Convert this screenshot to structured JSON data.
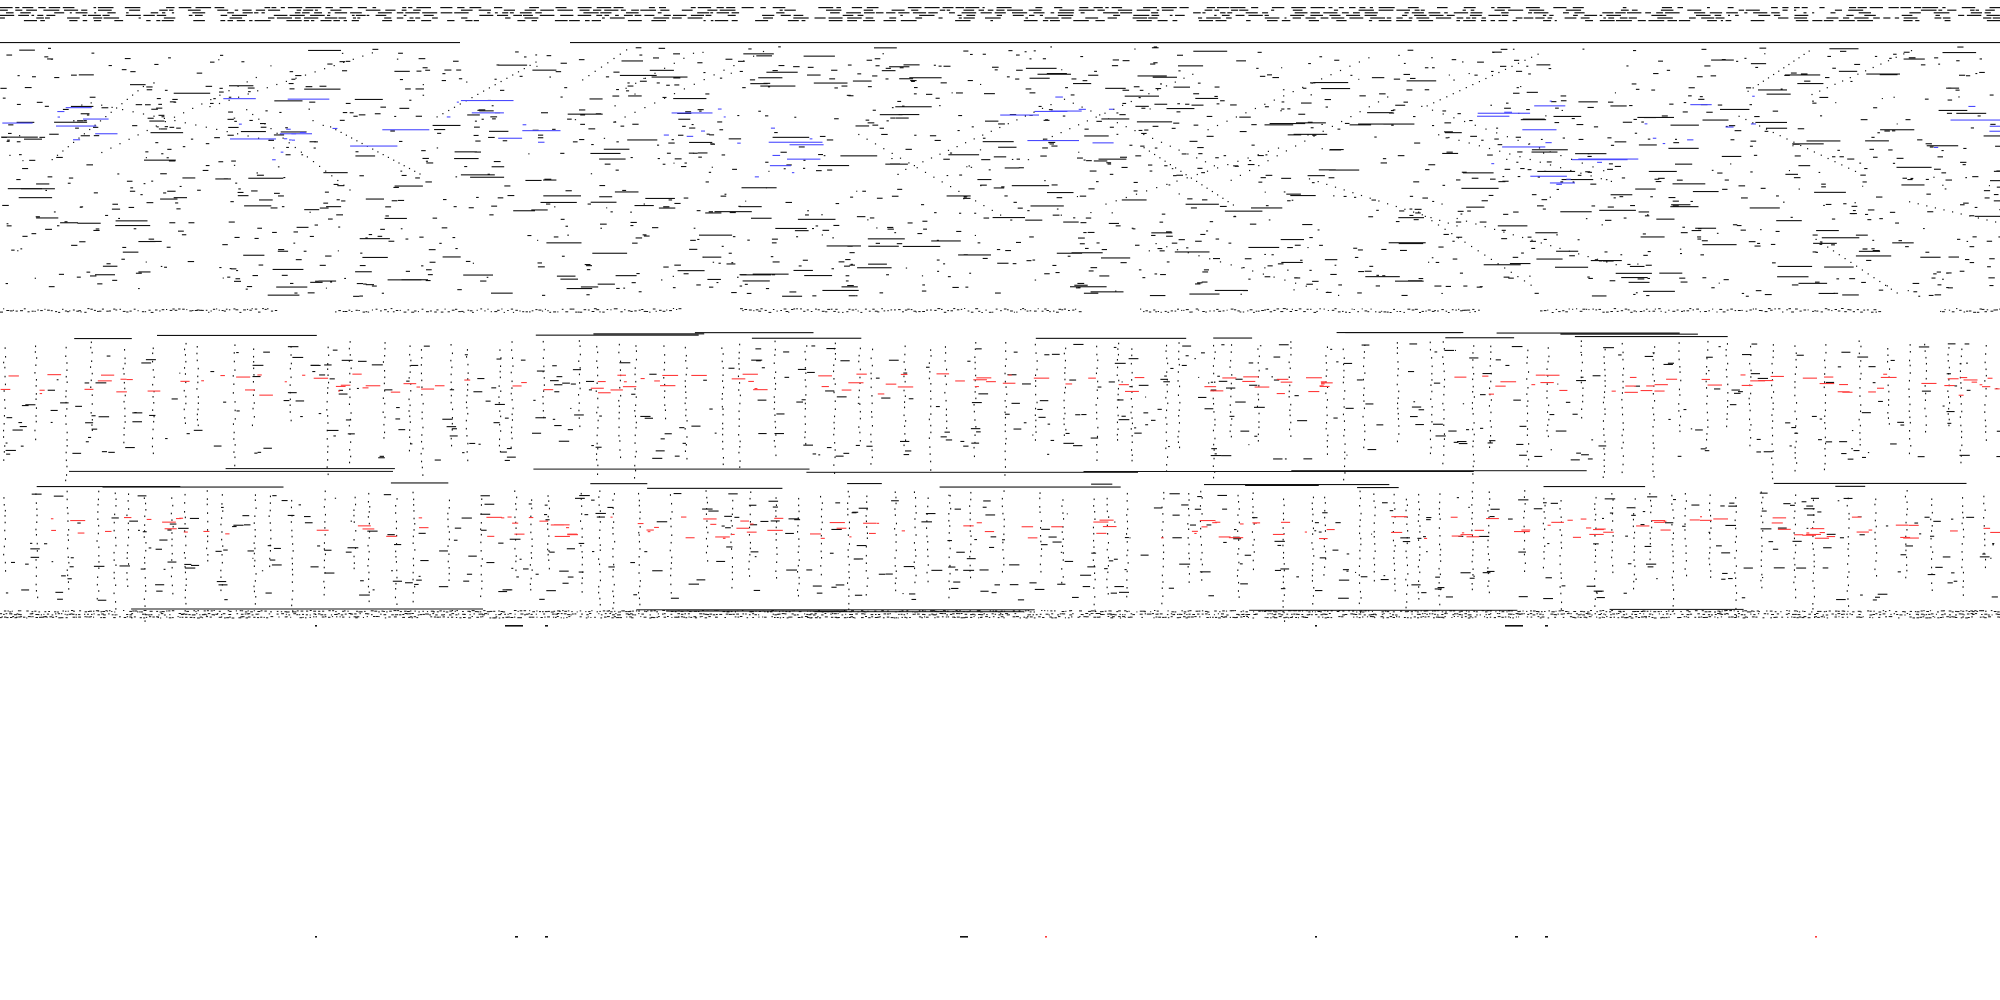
{
  "palette": {
    "background": "#ffffff",
    "ink": "#111111",
    "blue": "#4a4aff",
    "red": "#ff3b3b"
  },
  "bands": [
    {
      "kind": "header-dashes"
    },
    {
      "kind": "scatter-field",
      "accent": "blue"
    },
    {
      "kind": "dotted-separator"
    },
    {
      "kind": "column-field",
      "accent": "red"
    },
    {
      "kind": "column-field",
      "accent": "red"
    },
    {
      "kind": "dotted-separator"
    },
    {
      "kind": "sparse-footer-marks"
    }
  ]
}
